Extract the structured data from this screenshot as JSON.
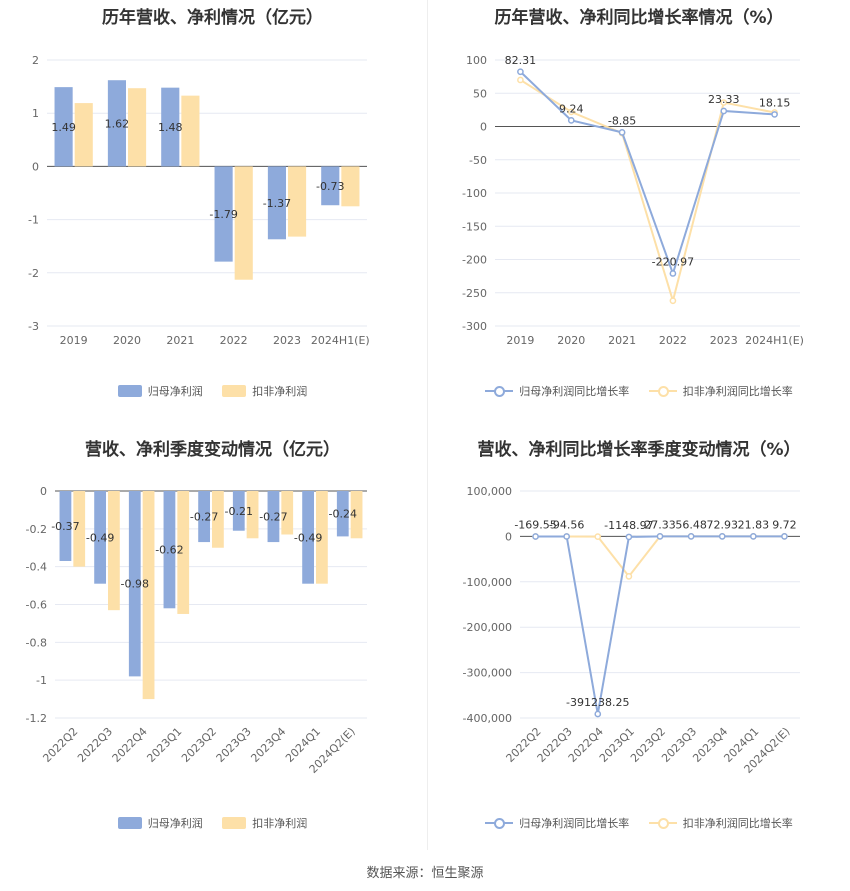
{
  "colors": {
    "bar_primary": "#8eaadb",
    "bar_secondary": "#fde0a8",
    "line_primary": "#8eaadb",
    "line_secondary": "#fde0a8",
    "grid": "#e6e9f2",
    "axis": "#555555"
  },
  "source": "数据来源：恒生聚源",
  "chart_data": [
    {
      "type": "bar",
      "title": "历年营收、净利情况（亿元）",
      "categories": [
        "2019",
        "2020",
        "2021",
        "2022",
        "2023",
        "2024H1(E)"
      ],
      "series": [
        {
          "name": "归母净利润",
          "values": [
            1.49,
            1.62,
            1.48,
            -1.79,
            -1.37,
            -0.73
          ],
          "labeled": true
        },
        {
          "name": "扣非净利润",
          "values": [
            1.19,
            1.47,
            1.33,
            -2.13,
            -1.32,
            -0.75
          ],
          "labeled": false
        }
      ],
      "ylim": [
        -3,
        2
      ],
      "yticks": [
        2,
        1,
        0,
        -1,
        -2,
        -3
      ],
      "ytick_labels": [
        "2",
        "1",
        "0",
        "-1",
        "-2",
        "-3"
      ],
      "grid": true,
      "legend": "bottom"
    },
    {
      "type": "line",
      "title": "历年营收、净利同比增长率情况（%）",
      "categories": [
        "2019",
        "2020",
        "2021",
        "2022",
        "2023",
        "2024H1(E)"
      ],
      "series": [
        {
          "name": "归母净利润同比增长率",
          "values": [
            82.31,
            9.24,
            -8.85,
            -220.97,
            23.33,
            18.15
          ],
          "labeled": true
        },
        {
          "name": "扣非净利润同比增长率",
          "values": [
            70,
            22,
            -10,
            -262,
            36,
            21
          ],
          "labeled": false
        }
      ],
      "ylim": [
        -300,
        100
      ],
      "yticks": [
        100,
        50,
        0,
        -50,
        -100,
        -150,
        -200,
        -250,
        -300
      ],
      "ytick_labels": [
        "100",
        "50",
        "0",
        "-50",
        "-100",
        "-150",
        "-200",
        "-250",
        "-300"
      ],
      "grid": true,
      "legend": "bottom"
    },
    {
      "type": "bar",
      "title": "营收、净利季度变动情况（亿元）",
      "categories": [
        "2022Q2",
        "2022Q3",
        "2022Q4",
        "2023Q1",
        "2023Q2",
        "2023Q3",
        "2023Q4",
        "2024Q1",
        "2024Q2(E)"
      ],
      "series": [
        {
          "name": "归母净利润",
          "values": [
            -0.37,
            -0.49,
            -0.98,
            -0.62,
            -0.27,
            -0.21,
            -0.27,
            -0.49,
            -0.24
          ],
          "labeled": true
        },
        {
          "name": "扣非净利润",
          "values": [
            -0.4,
            -0.63,
            -1.1,
            -0.65,
            -0.3,
            -0.25,
            -0.23,
            -0.49,
            -0.25
          ],
          "labeled": false
        }
      ],
      "ylim": [
        -1.2,
        0
      ],
      "yticks": [
        0,
        -0.2,
        -0.4,
        -0.6,
        -0.8,
        -1,
        -1.2
      ],
      "ytick_labels": [
        "0",
        "-0.2",
        "-0.4",
        "-0.6",
        "-0.8",
        "-1",
        "-1.2"
      ],
      "grid": true,
      "legend": "bottom"
    },
    {
      "type": "line",
      "title": "营收、净利同比增长率季度变动情况（%）",
      "categories": [
        "2022Q2",
        "2022Q3",
        "2022Q4",
        "2023Q1",
        "2023Q2",
        "2023Q3",
        "2023Q4",
        "2024Q1",
        "2024Q2(E)"
      ],
      "series": [
        {
          "name": "归母净利润同比增长率",
          "values": [
            -169.55,
            -94.56,
            -391238.25,
            -1148.97,
            27.33,
            56.48,
            72.93,
            21.83,
            9.72
          ],
          "labeled": true,
          "data_labels": [
            "-169.55",
            "-94.56",
            "-391238.25",
            "-1148.97",
            "27.33",
            "56.48",
            "72.93",
            "21.83",
            "9.72"
          ]
        },
        {
          "name": "扣非净利润同比增长率",
          "values": [
            -150,
            -120,
            -500,
            -88000,
            30,
            50,
            60,
            20,
            10
          ],
          "labeled": false
        }
      ],
      "ylim": [
        -400000,
        100000
      ],
      "yticks": [
        100000,
        0,
        -100000,
        -200000,
        -300000,
        -400000
      ],
      "ytick_labels": [
        "100,000",
        "0",
        "-100,000",
        "-200,000",
        "-300,000",
        "-400,000"
      ],
      "grid": true,
      "legend": "bottom"
    }
  ]
}
